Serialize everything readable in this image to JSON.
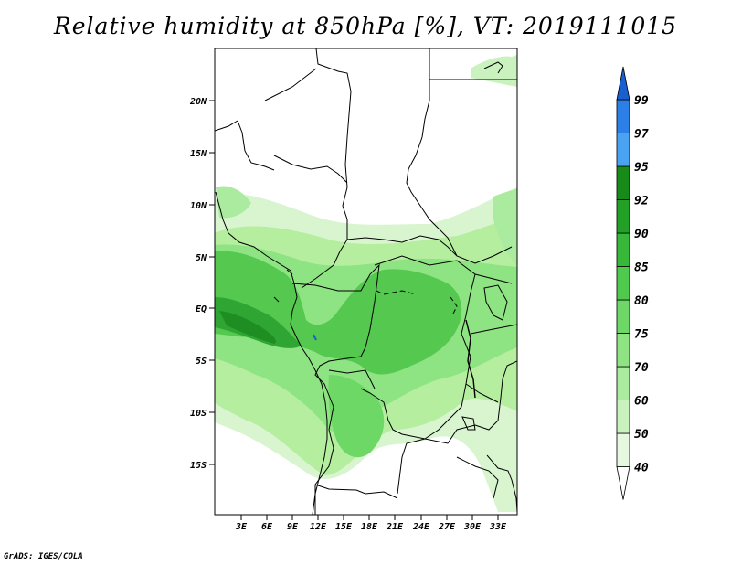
{
  "title": "Relative humidity at 850hPa [%], VT: 2019111015",
  "credit": "GrADS: IGES/COLA",
  "lat_labels": [
    "20N",
    "15N",
    "10N",
    "5N",
    "EQ",
    "5S",
    "10S",
    "15S"
  ],
  "lon_labels": [
    "3E",
    "6E",
    "9E",
    "12E",
    "15E",
    "18E",
    "21E",
    "24E",
    "27E",
    "30E",
    "33E"
  ],
  "colorbar": {
    "labels": [
      "40",
      "50",
      "60",
      "70",
      "75",
      "80",
      "85",
      "90",
      "92",
      "95",
      "97",
      "99"
    ],
    "colors": [
      "#ffffff",
      "#e6f9e0",
      "#c9f2bf",
      "#aaeba0",
      "#8ee382",
      "#6ed866",
      "#50ca4c",
      "#37b838",
      "#23a126",
      "#178a18",
      "#4aa3f2",
      "#2b7fe6",
      "#1a5fd0"
    ]
  }
}
